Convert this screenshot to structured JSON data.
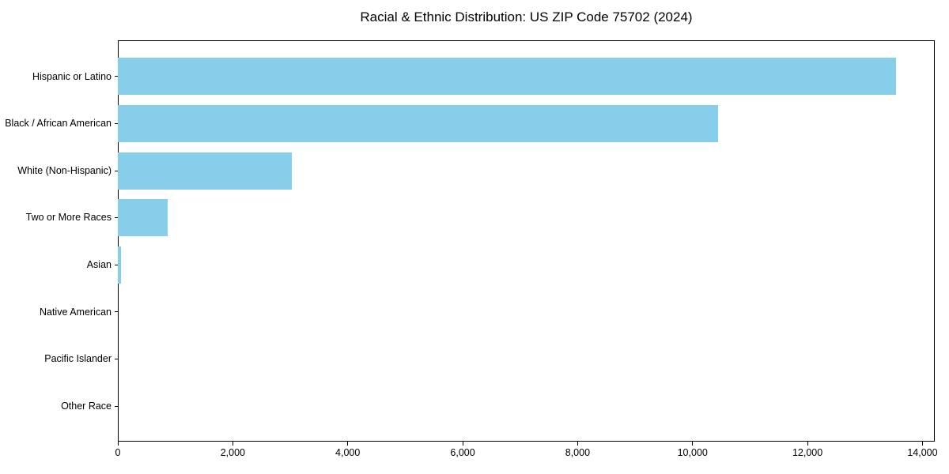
{
  "page": {
    "background": "#ffffff",
    "text_color": "#000000",
    "spine_color": "#000000"
  },
  "chart_data": {
    "type": "bar",
    "orientation": "horizontal",
    "title": "Racial & Ethnic Distribution: US ZIP Code 75702 (2024)",
    "categories": [
      "Hispanic or Latino",
      "Black / African American",
      "White (Non-Hispanic)",
      "Two or More Races",
      "Asian",
      "Native American",
      "Pacific Islander",
      "Other Race"
    ],
    "values": [
      13540,
      10440,
      3030,
      860,
      55,
      0,
      0,
      0
    ],
    "xlabel": "",
    "ylabel": "",
    "xlim": [
      0,
      14214
    ],
    "x_ticks": [
      0,
      2000,
      4000,
      6000,
      8000,
      10000,
      12000,
      14000
    ],
    "x_tick_labels": [
      "0",
      "2,000",
      "4,000",
      "6,000",
      "8,000",
      "10,000",
      "12,000",
      "14,000"
    ],
    "bar_color": "#87CEEB",
    "grid": false,
    "legend": null
  }
}
